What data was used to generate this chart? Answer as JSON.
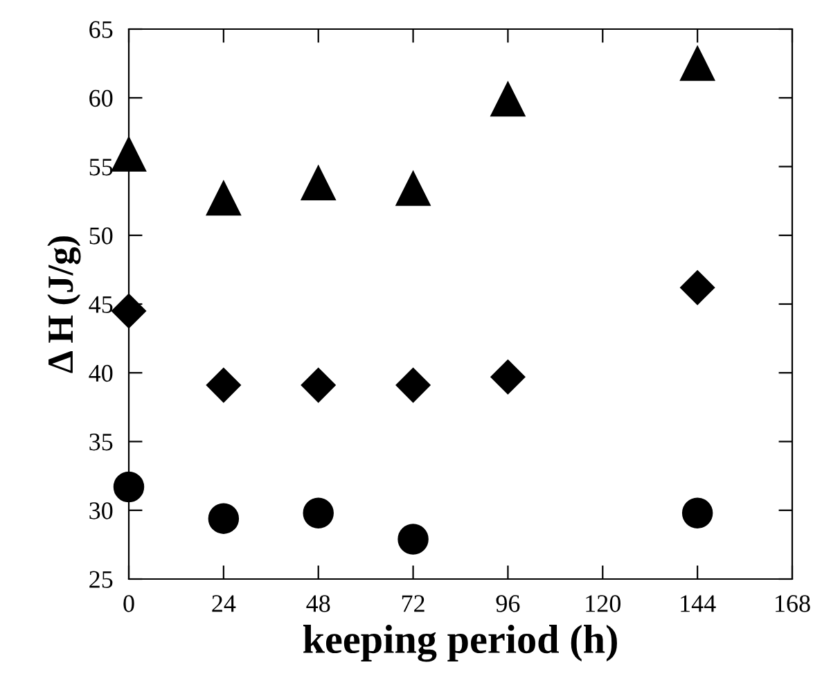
{
  "chart_data": {
    "type": "scatter",
    "xlabel": "keeping period (h)",
    "ylabel": "Δ H (J/g)",
    "xlim": [
      0,
      168
    ],
    "ylim": [
      25,
      65
    ],
    "xticks": [
      0,
      24,
      48,
      72,
      96,
      120,
      144,
      168
    ],
    "yticks": [
      25,
      30,
      35,
      40,
      45,
      50,
      55,
      60,
      65
    ],
    "grid": false,
    "legend": false,
    "series": [
      {
        "color": "#000000",
        "marker": "triangle",
        "x": [
          0,
          24,
          48,
          72,
          96,
          144
        ],
        "values": [
          55.9,
          52.7,
          53.8,
          53.4,
          59.9,
          62.5
        ]
      },
      {
        "color": "#000000",
        "marker": "diamond",
        "x": [
          0,
          24,
          48,
          72,
          96,
          144
        ],
        "values": [
          44.5,
          39.1,
          39.1,
          39.1,
          39.7,
          46.2
        ]
      },
      {
        "color": "#000000",
        "marker": "circle",
        "x": [
          0,
          24,
          48,
          72,
          144
        ],
        "values": [
          31.7,
          29.4,
          29.8,
          27.9,
          29.8
        ]
      }
    ]
  }
}
